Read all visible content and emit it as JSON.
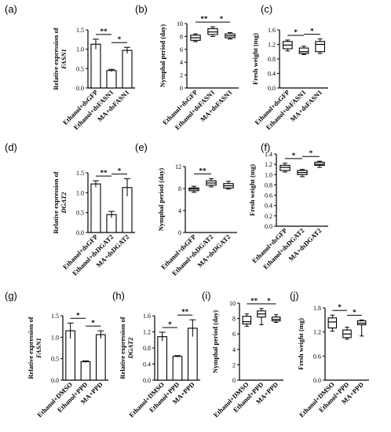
{
  "chart_data": [
    {
      "panel": "(a)",
      "type": "bar",
      "ylabel": "Relative expression of",
      "ylabel_gene": "FASN1",
      "ylim": [
        0,
        1.5
      ],
      "yticks": [
        "0.0",
        "0.5",
        "1.0",
        "1.5"
      ],
      "categories": [
        "Ethanol+dsGFP",
        "Ethanol+dsFASN1",
        "MA+dsFASN1"
      ],
      "values": [
        1.13,
        0.45,
        0.97
      ],
      "errors": [
        0.13,
        0.03,
        0.08
      ],
      "significance": [
        {
          "from": 0,
          "to": 1,
          "label": "**"
        },
        {
          "from": 1,
          "to": 2,
          "label": "*"
        }
      ]
    },
    {
      "panel": "(b)",
      "type": "box",
      "ylabel": "Nymphal period (day)",
      "ylim": [
        0,
        10
      ],
      "yticks": [
        "0",
        "2",
        "4",
        "6",
        "8",
        "10"
      ],
      "categories": [
        "Ethanol+dsGFP",
        "Ethanol+dsFASN1",
        "MA+dsFASN1"
      ],
      "boxes": [
        {
          "min": 7.2,
          "q1": 7.4,
          "median": 7.8,
          "q3": 8.2,
          "max": 8.4
        },
        {
          "min": 8.0,
          "q1": 8.3,
          "median": 8.7,
          "q3": 9.2,
          "max": 9.5
        },
        {
          "min": 7.6,
          "q1": 7.8,
          "median": 8.1,
          "q3": 8.4,
          "max": 8.6
        }
      ],
      "significance": [
        {
          "from": 0,
          "to": 1,
          "label": "**"
        },
        {
          "from": 1,
          "to": 2,
          "label": "*"
        }
      ]
    },
    {
      "panel": "(c)",
      "type": "box",
      "ylabel": "Fresh weight (mg)",
      "ylim": [
        0.0,
        1.6
      ],
      "yticks": [
        "0.0",
        "0.4",
        "0.8",
        "1.2",
        "1.6"
      ],
      "categories": [
        "Ethanol+dsGFP",
        "Ethanol+dsFASN1",
        "MA+dsFASN1"
      ],
      "boxes": [
        {
          "min": 1.02,
          "q1": 1.08,
          "median": 1.18,
          "q3": 1.28,
          "max": 1.32
        },
        {
          "min": 0.92,
          "q1": 0.95,
          "median": 1.0,
          "q3": 1.1,
          "max": 1.15
        },
        {
          "min": 0.95,
          "q1": 1.0,
          "median": 1.2,
          "q3": 1.28,
          "max": 1.35
        }
      ],
      "significance": [
        {
          "from": 0,
          "to": 1,
          "label": "*"
        },
        {
          "from": 1,
          "to": 2,
          "label": "*"
        }
      ]
    },
    {
      "panel": "(d)",
      "type": "bar",
      "ylabel": "Relative expression of",
      "ylabel_gene": "DGAT2",
      "ylim": [
        0,
        1.5
      ],
      "yticks": [
        "0.0",
        "0.5",
        "1.0",
        "1.5"
      ],
      "categories": [
        "Ethanol+dsGFP",
        "Ethanol+dsDGAT2",
        "MA+dsDGAT2"
      ],
      "values": [
        1.22,
        0.45,
        1.13
      ],
      "errors": [
        0.08,
        0.08,
        0.22
      ],
      "significance": [
        {
          "from": 0,
          "to": 1,
          "label": "**"
        },
        {
          "from": 1,
          "to": 2,
          "label": "*"
        }
      ]
    },
    {
      "panel": "(e)",
      "type": "box",
      "ylabel": "Nymphal period (day)",
      "ylim": [
        0,
        12
      ],
      "yticks": [
        "0",
        "4",
        "8",
        "12"
      ],
      "categories": [
        "Ethanol+dsGFP",
        "Ethanol+dsDGAT2",
        "MA+dsDGAT2"
      ],
      "boxes": [
        {
          "min": 7.3,
          "q1": 7.6,
          "median": 7.9,
          "q3": 8.1,
          "max": 8.4
        },
        {
          "min": 8.3,
          "q1": 8.6,
          "median": 9.0,
          "q3": 9.4,
          "max": 9.8
        },
        {
          "min": 7.9,
          "q1": 8.1,
          "median": 8.5,
          "q3": 8.9,
          "max": 9.3
        }
      ],
      "significance": [
        {
          "from": 0,
          "to": 1,
          "label": "**"
        }
      ]
    },
    {
      "panel": "(f)",
      "type": "box",
      "ylabel": "Fresh weight (mg)",
      "ylim": [
        0.0,
        1.4
      ],
      "yticks": [
        "0.0",
        "0.2",
        "0.4",
        "0.6",
        "0.8",
        "1.0",
        "1.2",
        "1.4"
      ],
      "categories": [
        "Ethanol+dsGFP",
        "Ethanol+dsDGAT2",
        "MA+dsDGAT2"
      ],
      "boxes": [
        {
          "min": 1.05,
          "q1": 1.08,
          "median": 1.14,
          "q3": 1.18,
          "max": 1.22
        },
        {
          "min": 0.96,
          "q1": 1.0,
          "median": 1.04,
          "q3": 1.08,
          "max": 1.1
        },
        {
          "min": 1.14,
          "q1": 1.18,
          "median": 1.2,
          "q3": 1.24,
          "max": 1.26
        }
      ],
      "significance": [
        {
          "from": 0,
          "to": 1,
          "label": "*"
        },
        {
          "from": 1,
          "to": 2,
          "label": "*"
        }
      ]
    },
    {
      "panel": "(g)",
      "type": "bar",
      "ylabel": "Relative expression of",
      "ylabel_gene": "FASN1",
      "ylim": [
        0,
        1.5
      ],
      "yticks": [
        "0.0",
        "0.5",
        "1.0",
        "1.5"
      ],
      "categories": [
        "Ethanol+DMSO",
        "Ethanol+PPD",
        "MA+PPD"
      ],
      "values": [
        1.15,
        0.43,
        1.06
      ],
      "errors": [
        0.18,
        0.02,
        0.09
      ],
      "significance": [
        {
          "from": 0,
          "to": 1,
          "label": "*"
        },
        {
          "from": 1,
          "to": 2,
          "label": "*"
        }
      ]
    },
    {
      "panel": "(h)",
      "type": "bar",
      "ylabel": "Relative expression of",
      "ylabel_gene": "DGAT2",
      "ylim": [
        0,
        1.6
      ],
      "yticks": [
        "0.0",
        "0.4",
        "0.8",
        "1.2",
        "1.6"
      ],
      "categories": [
        "Ethanol+DMSO",
        "Ethanol+PPD",
        "MA+PPD"
      ],
      "values": [
        1.08,
        0.59,
        1.29
      ],
      "errors": [
        0.11,
        0.02,
        0.21
      ],
      "significance": [
        {
          "from": 0,
          "to": 1,
          "label": "*"
        },
        {
          "from": 1,
          "to": 2,
          "label": "**"
        }
      ]
    },
    {
      "panel": "(i)",
      "type": "box",
      "ylabel": "Nymphal period (day)",
      "ylim": [
        0,
        10
      ],
      "yticks": [
        "0",
        "2",
        "4",
        "6",
        "8",
        "10"
      ],
      "categories": [
        "Ethanol+DMSO",
        "Ethanol+PPD",
        "MA+PPD"
      ],
      "boxes": [
        {
          "min": 7.0,
          "q1": 7.3,
          "median": 7.6,
          "q3": 8.3,
          "max": 8.6
        },
        {
          "min": 7.2,
          "q1": 8.2,
          "median": 8.6,
          "q3": 9.0,
          "max": 9.3
        },
        {
          "min": 7.5,
          "q1": 7.7,
          "median": 7.9,
          "q3": 8.2,
          "max": 8.5
        }
      ],
      "significance": [
        {
          "from": 0,
          "to": 1,
          "label": "**"
        },
        {
          "from": 1,
          "to": 2,
          "label": "*"
        }
      ]
    },
    {
      "panel": "(j)",
      "type": "box",
      "ylabel": "Fresh weight (mg)",
      "ylim": [
        0.0,
        1.8
      ],
      "yticks": [
        "0.0",
        "0.6",
        "1.2",
        "1.8"
      ],
      "categories": [
        "Ethanol+DMSO",
        "Ethanol+PPD",
        "MA+PPD"
      ],
      "boxes": [
        {
          "min": 1.22,
          "q1": 1.3,
          "median": 1.45,
          "q3": 1.55,
          "max": 1.62
        },
        {
          "min": 1.02,
          "q1": 1.06,
          "median": 1.15,
          "q3": 1.25,
          "max": 1.32
        },
        {
          "min": 1.1,
          "q1": 1.38,
          "median": 1.42,
          "q3": 1.48,
          "max": 1.5
        }
      ],
      "significance": [
        {
          "from": 0,
          "to": 1,
          "label": "*"
        },
        {
          "from": 1,
          "to": 2,
          "label": "*"
        }
      ]
    }
  ]
}
